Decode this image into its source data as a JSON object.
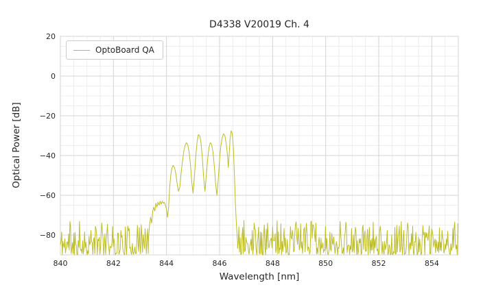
{
  "chart_data": {
    "type": "line",
    "title": "D4338 V20019 Ch. 4",
    "xlabel": "Wavelength [nm]",
    "ylabel": "Optical Power [dB]",
    "xlim": [
      840,
      855
    ],
    "ylim": [
      -90,
      20
    ],
    "xticks": [
      840,
      842,
      844,
      846,
      848,
      850,
      852,
      854
    ],
    "yticks": [
      -80,
      -60,
      -40,
      -20,
      0,
      20
    ],
    "grid": {
      "on": true,
      "x_minor_step": 0.5,
      "y_minor_step": 5,
      "major_color": "#d4d4d4",
      "minor_color": "#eaeaea",
      "border_color": "#d4d4d4"
    },
    "background": "#ffffff",
    "legend": {
      "position": "upper-left",
      "entries": [
        "OptoBoard QA"
      ]
    },
    "series": [
      {
        "name": "OptoBoard QA",
        "color": "#bcbd22",
        "line_width": 1,
        "signal_points": [
          [
            843.32,
            -82
          ],
          [
            843.36,
            -75
          ],
          [
            843.4,
            -71
          ],
          [
            843.44,
            -74
          ],
          [
            843.48,
            -68
          ],
          [
            843.52,
            -66
          ],
          [
            843.56,
            -68
          ],
          [
            843.6,
            -64
          ],
          [
            843.64,
            -66
          ],
          [
            843.68,
            -63.5
          ],
          [
            843.72,
            -65
          ],
          [
            843.76,
            -63
          ],
          [
            843.8,
            -64.5
          ],
          [
            843.84,
            -63
          ],
          [
            843.88,
            -64
          ],
          [
            843.92,
            -63.5
          ],
          [
            843.96,
            -65
          ],
          [
            844.0,
            -67
          ],
          [
            844.04,
            -71
          ],
          [
            844.08,
            -66
          ],
          [
            844.12,
            -56
          ],
          [
            844.16,
            -50
          ],
          [
            844.2,
            -46.5
          ],
          [
            844.25,
            -45
          ],
          [
            844.3,
            -46
          ],
          [
            844.35,
            -49
          ],
          [
            844.4,
            -54
          ],
          [
            844.45,
            -58
          ],
          [
            844.5,
            -56
          ],
          [
            844.55,
            -49
          ],
          [
            844.6,
            -43
          ],
          [
            844.65,
            -38
          ],
          [
            844.7,
            -35
          ],
          [
            844.75,
            -33.5
          ],
          [
            844.8,
            -34.5
          ],
          [
            844.85,
            -38
          ],
          [
            844.9,
            -44
          ],
          [
            844.95,
            -53
          ],
          [
            845.0,
            -59
          ],
          [
            845.05,
            -51
          ],
          [
            845.1,
            -41
          ],
          [
            845.15,
            -33.5
          ],
          [
            845.2,
            -29.5
          ],
          [
            845.25,
            -30
          ],
          [
            845.3,
            -33.5
          ],
          [
            845.35,
            -41
          ],
          [
            845.4,
            -51
          ],
          [
            845.45,
            -58
          ],
          [
            845.5,
            -50
          ],
          [
            845.55,
            -42
          ],
          [
            845.6,
            -36
          ],
          [
            845.65,
            -33.5
          ],
          [
            845.7,
            -34.5
          ],
          [
            845.75,
            -38
          ],
          [
            845.8,
            -45
          ],
          [
            845.85,
            -54
          ],
          [
            845.9,
            -60
          ],
          [
            845.95,
            -52
          ],
          [
            846.0,
            -42
          ],
          [
            846.05,
            -35
          ],
          [
            846.1,
            -31
          ],
          [
            846.15,
            -29
          ],
          [
            846.2,
            -30
          ],
          [
            846.25,
            -34
          ],
          [
            846.3,
            -40
          ],
          [
            846.33,
            -46
          ],
          [
            846.36,
            -40
          ],
          [
            846.4,
            -31
          ],
          [
            846.44,
            -27.5
          ],
          [
            846.48,
            -29
          ],
          [
            846.52,
            -36
          ],
          [
            846.56,
            -50
          ],
          [
            846.6,
            -65
          ],
          [
            846.64,
            -76
          ],
          [
            846.68,
            -84
          ]
        ],
        "noise_floor": {
          "regions": [
            [
              840.0,
              843.32
            ],
            [
              846.68,
              855.0
            ]
          ],
          "step_nm": 0.024,
          "y_min": -90,
          "y_max": -75,
          "bias_exponent": 1.6,
          "spike_chance": 0.06,
          "spike_max": -72.5,
          "seed": 11
        }
      }
    ]
  }
}
